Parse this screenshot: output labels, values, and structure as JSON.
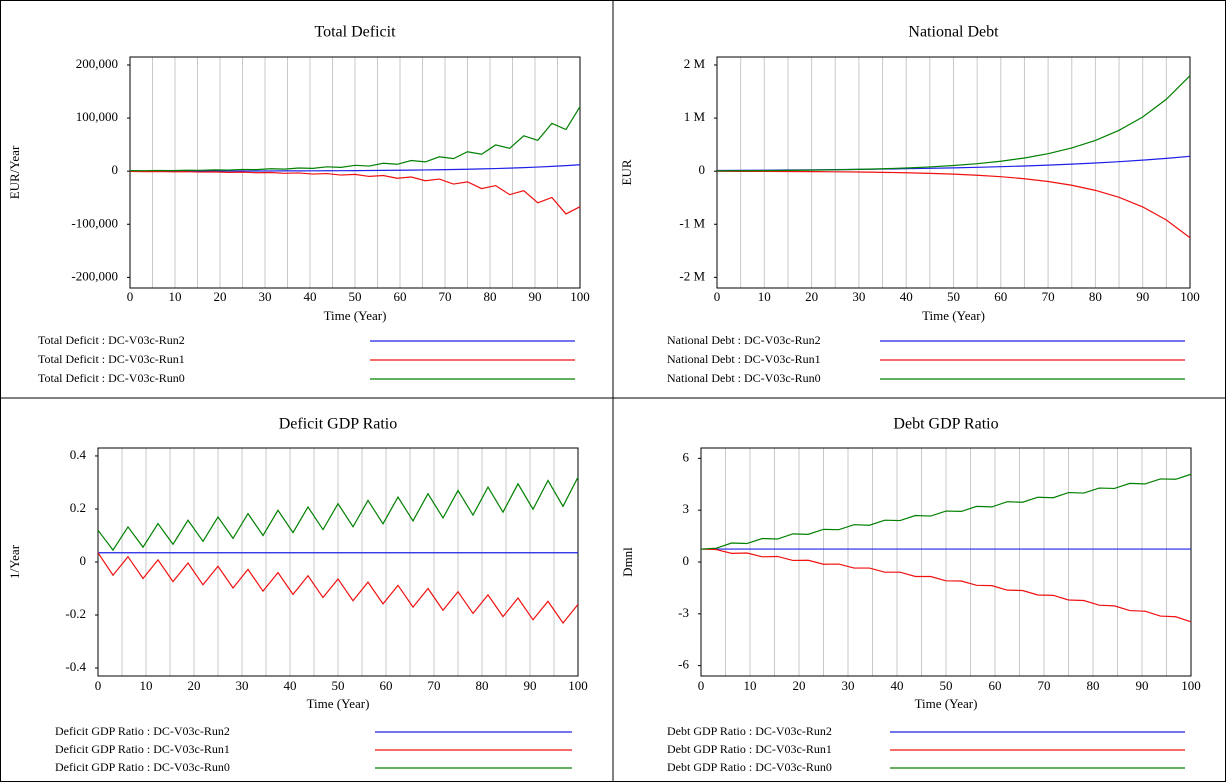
{
  "chart_data": [
    {
      "type": "line",
      "title": "Total Deficit",
      "x_label": "Time (Year)",
      "y_label": "EUR/Year",
      "xlim": [
        0,
        100
      ],
      "xticks": [
        0,
        10,
        20,
        30,
        40,
        50,
        60,
        70,
        80,
        90,
        100
      ],
      "x_minor_ticks": [
        5,
        15,
        25,
        35,
        45,
        55,
        65,
        75,
        85,
        95
      ],
      "ylim": [
        -220000,
        215000
      ],
      "yticks": [
        {
          "value": 200000,
          "label": "200,000"
        },
        {
          "value": 100000,
          "label": "100,000"
        },
        0,
        {
          "value": -100000,
          "label": "-100,000"
        },
        {
          "value": -200000,
          "label": "-200,000"
        }
      ],
      "grid": true,
      "x": [
        0,
        3.125,
        6.25,
        9.375,
        12.5,
        15.625,
        18.75,
        21.875,
        25,
        28.125,
        31.25,
        34.375,
        37.5,
        40.625,
        43.75,
        46.875,
        50,
        53.125,
        56.25,
        59.375,
        62.5,
        65.625,
        68.75,
        71.875,
        75,
        78.125,
        81.25,
        84.375,
        87.5,
        90.625,
        93.75,
        96.875,
        100
      ],
      "series": [
        {
          "name": "Total Deficit : DC-V03c-Run2",
          "color": "#2020e8",
          "values": [
            100,
            116,
            135,
            157,
            182,
            212,
            246,
            286,
            332,
            386,
            448,
            521,
            605,
            703,
            817,
            949,
            1102,
            1281,
            1488,
            1729,
            2009,
            2334,
            2711,
            3150,
            3660,
            4252,
            4940,
            5740,
            6669,
            7748,
            9002,
            10459,
            12151
          ]
        },
        {
          "name": "Total Deficit : DC-V03c-Run1",
          "color": "#f01010",
          "values": [
            -550,
            -890,
            -740,
            -1210,
            -1000,
            -1630,
            -1350,
            -2200,
            -1830,
            -2970,
            -2470,
            -4010,
            -3330,
            -5410,
            -4490,
            -7310,
            -6060,
            -9860,
            -8180,
            -13310,
            -11050,
            -17970,
            -14910,
            -24260,
            -20130,
            -32740,
            -27170,
            -44200,
            -36680,
            -59660,
            -49510,
            -80530,
            -66830
          ]
        },
        {
          "name": "Total Deficit : DC-V03c-Run0",
          "color": "#008000",
          "values": [
            1000,
            900,
            1400,
            1200,
            1800,
            1600,
            2500,
            2100,
            3300,
            2900,
            4500,
            3900,
            6000,
            5300,
            8200,
            7100,
            11000,
            9600,
            14900,
            13000,
            20100,
            17500,
            27100,
            23600,
            36600,
            31900,
            49400,
            43000,
            66700,
            58100,
            90000,
            78400,
            121500
          ]
        }
      ]
    },
    {
      "type": "line",
      "title": "National Debt",
      "x_label": "Time (Year)",
      "y_label": "EUR",
      "xlim": [
        0,
        100
      ],
      "xticks": [
        0,
        10,
        20,
        30,
        40,
        50,
        60,
        70,
        80,
        90,
        100
      ],
      "x_minor_ticks": [
        5,
        15,
        25,
        35,
        45,
        55,
        65,
        75,
        85,
        95
      ],
      "ylim": [
        -2200000,
        2150000
      ],
      "yticks": [
        {
          "value": 2000000,
          "label": "2 M"
        },
        {
          "value": 1000000,
          "label": "1 M"
        },
        0,
        {
          "value": -1000000,
          "label": "-1 M"
        },
        {
          "value": -2000000,
          "label": "-2 M"
        }
      ],
      "grid": true,
      "x": [
        0,
        5,
        10,
        15,
        20,
        25,
        30,
        35,
        40,
        45,
        50,
        55,
        60,
        65,
        70,
        75,
        80,
        85,
        90,
        95,
        100
      ],
      "series": [
        {
          "name": "National Debt : DC-V03c-Run2",
          "color": "#2020e8",
          "values": [
            13940,
            16200,
            18820,
            21860,
            25400,
            29510,
            34290,
            39830,
            46280,
            53770,
            62470,
            72580,
            84320,
            97960,
            113810,
            132230,
            153630,
            178490,
            207370,
            240920,
            279900
          ]
        },
        {
          "name": "National Debt : DC-V03c-Run1",
          "color": "#f01010",
          "values": [
            -2487,
            -3395,
            -4634,
            -6325,
            -8634,
            -11785,
            -16087,
            -21959,
            -29974,
            -40915,
            -55849,
            -76234,
            -104060,
            -142040,
            -193890,
            -264660,
            -361260,
            -493120,
            -673110,
            -918800,
            -1254160
          ]
        },
        {
          "name": "National Debt : DC-V03c-Run0",
          "color": "#008000",
          "values": [
            6270,
            8320,
            11040,
            14650,
            19440,
            25800,
            34240,
            45430,
            60290,
            80000,
            106160,
            140870,
            186930,
            248060,
            329170,
            436800,
            579630,
            769160,
            1020670,
            1354430,
            1797330
          ]
        }
      ]
    },
    {
      "type": "line",
      "title": "Deficit GDP Ratio",
      "x_label": "Time (Year)",
      "y_label": "1/Year",
      "xlim": [
        0,
        100
      ],
      "xticks": [
        0,
        10,
        20,
        30,
        40,
        50,
        60,
        70,
        80,
        90,
        100
      ],
      "x_minor_ticks": [
        5,
        15,
        25,
        35,
        45,
        55,
        65,
        75,
        85,
        95
      ],
      "ylim": [
        -0.43,
        0.43
      ],
      "yticks": [
        0.4,
        0.2,
        0,
        -0.2,
        -0.4
      ],
      "grid": true,
      "x": [
        0,
        3.125,
        6.25,
        9.375,
        12.5,
        15.625,
        18.75,
        21.875,
        25,
        28.125,
        31.25,
        34.375,
        37.5,
        40.625,
        43.75,
        46.875,
        50,
        53.125,
        56.25,
        59.375,
        62.5,
        65.625,
        68.75,
        71.875,
        75,
        78.125,
        81.25,
        84.375,
        87.5,
        90.625,
        93.75,
        96.875,
        100
      ],
      "series": [
        {
          "name": "Deficit GDP Ratio : DC-V03c-Run2",
          "color": "#2020e8",
          "values": [
            0.035,
            0.035,
            0.035,
            0.035,
            0.035,
            0.035,
            0.035,
            0.035,
            0.035,
            0.035,
            0.035,
            0.035,
            0.035,
            0.035,
            0.035,
            0.035,
            0.035,
            0.035,
            0.035,
            0.035,
            0.035,
            0.035,
            0.035,
            0.035,
            0.035,
            0.035,
            0.035,
            0.035,
            0.035,
            0.035,
            0.035,
            0.035,
            0.035
          ]
        },
        {
          "name": "Deficit GDP Ratio : DC-V03c-Run1",
          "color": "#f01010",
          "values": [
            0.035,
            -0.05,
            0.02,
            -0.062,
            0.008,
            -0.074,
            -0.004,
            -0.086,
            -0.016,
            -0.098,
            -0.028,
            -0.11,
            -0.04,
            -0.122,
            -0.052,
            -0.134,
            -0.064,
            -0.146,
            -0.076,
            -0.158,
            -0.088,
            -0.17,
            -0.1,
            -0.182,
            -0.112,
            -0.194,
            -0.124,
            -0.206,
            -0.136,
            -0.218,
            -0.148,
            -0.23,
            -0.16
          ]
        },
        {
          "name": "Deficit GDP Ratio : DC-V03c-Run0",
          "color": "#008000",
          "values": [
            0.12,
            0.045,
            0.1325,
            0.056,
            0.145,
            0.067,
            0.1575,
            0.078,
            0.17,
            0.089,
            0.1825,
            0.1,
            0.195,
            0.111,
            0.2075,
            0.122,
            0.22,
            0.133,
            0.2325,
            0.144,
            0.245,
            0.155,
            0.2575,
            0.166,
            0.27,
            0.177,
            0.2825,
            0.188,
            0.295,
            0.199,
            0.3075,
            0.21,
            0.32
          ]
        }
      ]
    },
    {
      "type": "line",
      "title": "Debt GDP Ratio",
      "x_label": "Time (Year)",
      "y_label": "Dmnl",
      "xlim": [
        0,
        100
      ],
      "xticks": [
        0,
        10,
        20,
        30,
        40,
        50,
        60,
        70,
        80,
        90,
        100
      ],
      "x_minor_ticks": [
        5,
        15,
        25,
        35,
        45,
        55,
        65,
        75,
        85,
        95
      ],
      "ylim": [
        -6.6,
        6.6
      ],
      "yticks": [
        6,
        3,
        0,
        -3,
        -6
      ],
      "grid": true,
      "x": [
        0,
        3.125,
        6.25,
        9.375,
        12.5,
        15.625,
        18.75,
        21.875,
        25,
        28.125,
        31.25,
        34.375,
        37.5,
        40.625,
        43.75,
        46.875,
        50,
        53.125,
        56.25,
        59.375,
        62.5,
        65.625,
        68.75,
        71.875,
        75,
        78.125,
        81.25,
        84.375,
        87.5,
        90.625,
        93.75,
        96.875,
        100
      ],
      "series": [
        {
          "name": "Debt GDP Ratio : DC-V03c-Run2",
          "color": "#2020e8",
          "values": [
            0.75,
            0.75,
            0.75,
            0.75,
            0.75,
            0.75,
            0.75,
            0.75,
            0.75,
            0.75,
            0.75,
            0.75,
            0.75,
            0.75,
            0.75,
            0.75,
            0.75,
            0.75,
            0.75,
            0.75,
            0.75,
            0.75,
            0.75,
            0.75,
            0.75,
            0.75,
            0.75,
            0.75,
            0.75,
            0.75,
            0.75,
            0.75,
            0.75
          ]
        },
        {
          "name": "Debt GDP Ratio : DC-V03c-Run1",
          "color": "#f01010",
          "values": [
            0.75,
            0.72,
            0.5,
            0.52,
            0.3,
            0.32,
            0.09,
            0.1,
            -0.13,
            -0.12,
            -0.35,
            -0.35,
            -0.59,
            -0.59,
            -0.84,
            -0.84,
            -1.09,
            -1.1,
            -1.35,
            -1.37,
            -1.63,
            -1.65,
            -1.91,
            -1.93,
            -2.2,
            -2.23,
            -2.5,
            -2.54,
            -2.81,
            -2.85,
            -3.13,
            -3.17,
            -3.46
          ]
        },
        {
          "name": "Debt GDP Ratio : DC-V03c-Run0",
          "color": "#008000",
          "values": [
            0.75,
            0.8,
            1.1,
            1.07,
            1.36,
            1.33,
            1.63,
            1.6,
            1.89,
            1.87,
            2.16,
            2.13,
            2.42,
            2.4,
            2.69,
            2.66,
            2.95,
            2.93,
            3.22,
            3.19,
            3.49,
            3.46,
            3.75,
            3.72,
            4.02,
            3.99,
            4.28,
            4.26,
            4.55,
            4.52,
            4.81,
            4.79,
            5.08
          ]
        }
      ]
    }
  ]
}
